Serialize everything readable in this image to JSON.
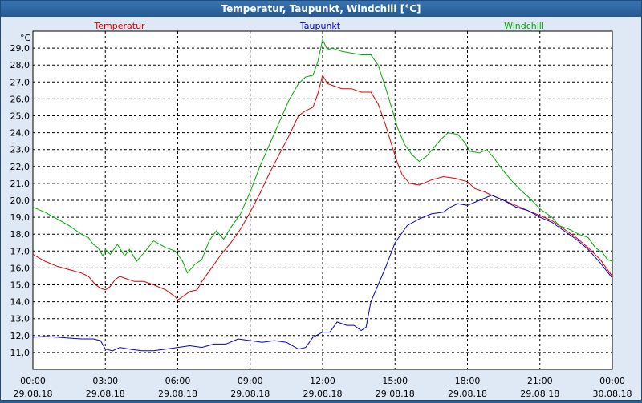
{
  "window": {
    "title": "Temperatur, Taupunkt, Windchill [°C]"
  },
  "chart_data": {
    "type": "line",
    "title": "Temperatur, Taupunkt, Windchill [°C]",
    "ylabel": "°C",
    "xlabel": "",
    "ylim": [
      10.0,
      30.0
    ],
    "xlim": [
      0,
      24
    ],
    "y_ticks": [
      "11,0",
      "12,0",
      "13,0",
      "14,0",
      "15,0",
      "16,0",
      "17,0",
      "18,0",
      "19,0",
      "20,0",
      "21,0",
      "22,0",
      "23,0",
      "24,0",
      "25,0",
      "26,0",
      "27,0",
      "28,0",
      "29,0"
    ],
    "y_tick_values": [
      11,
      12,
      13,
      14,
      15,
      16,
      17,
      18,
      19,
      20,
      21,
      22,
      23,
      24,
      25,
      26,
      27,
      28,
      29
    ],
    "x_ticks": [
      {
        "hour": 0,
        "time": "00:00",
        "date": "29.08.18"
      },
      {
        "hour": 3,
        "time": "03:00",
        "date": "29.08.18"
      },
      {
        "hour": 6,
        "time": "06:00",
        "date": "29.08.18"
      },
      {
        "hour": 9,
        "time": "09:00",
        "date": "29.08.18"
      },
      {
        "hour": 12,
        "time": "12:00",
        "date": "29.08.18"
      },
      {
        "hour": 15,
        "time": "15:00",
        "date": "29.08.18"
      },
      {
        "hour": 18,
        "time": "18:00",
        "date": "29.08.18"
      },
      {
        "hour": 21,
        "time": "21:00",
        "date": "29.08.18"
      },
      {
        "hour": 24,
        "time": "00:00",
        "date": "30.08.18"
      }
    ],
    "grid": true,
    "series": [
      {
        "name": "Temperatur",
        "color": "#dd0000",
        "points": [
          [
            0,
            16.8
          ],
          [
            0.5,
            16.4
          ],
          [
            1,
            16.1
          ],
          [
            1.5,
            15.9
          ],
          [
            2,
            15.7
          ],
          [
            2.3,
            15.5
          ],
          [
            2.6,
            15.0
          ],
          [
            2.8,
            14.8
          ],
          [
            3.0,
            14.7
          ],
          [
            3.2,
            14.9
          ],
          [
            3.4,
            15.3
          ],
          [
            3.6,
            15.5
          ],
          [
            3.8,
            15.4
          ],
          [
            4.2,
            15.2
          ],
          [
            4.6,
            15.2
          ],
          [
            5.0,
            15.0
          ],
          [
            5.5,
            14.7
          ],
          [
            5.9,
            14.3
          ],
          [
            6.0,
            14.1
          ],
          [
            6.2,
            14.3
          ],
          [
            6.5,
            14.6
          ],
          [
            6.8,
            14.7
          ],
          [
            7.0,
            15.2
          ],
          [
            7.4,
            16.0
          ],
          [
            7.8,
            16.8
          ],
          [
            8.2,
            17.5
          ],
          [
            8.6,
            18.3
          ],
          [
            9.0,
            19.3
          ],
          [
            9.4,
            20.4
          ],
          [
            9.8,
            21.6
          ],
          [
            10.2,
            22.7
          ],
          [
            10.6,
            23.8
          ],
          [
            11.0,
            25.0
          ],
          [
            11.3,
            25.3
          ],
          [
            11.6,
            25.5
          ],
          [
            11.8,
            26.3
          ],
          [
            12.0,
            27.4
          ],
          [
            12.2,
            26.9
          ],
          [
            12.4,
            26.8
          ],
          [
            12.8,
            26.6
          ],
          [
            13.2,
            26.6
          ],
          [
            13.6,
            26.4
          ],
          [
            14.0,
            26.4
          ],
          [
            14.3,
            25.7
          ],
          [
            14.6,
            24.5
          ],
          [
            14.9,
            23.1
          ],
          [
            15.1,
            22.2
          ],
          [
            15.3,
            21.5
          ],
          [
            15.6,
            21.0
          ],
          [
            16.0,
            20.9
          ],
          [
            16.5,
            21.2
          ],
          [
            17.0,
            21.4
          ],
          [
            17.5,
            21.3
          ],
          [
            18.0,
            21.1
          ],
          [
            18.3,
            20.7
          ],
          [
            18.7,
            20.5
          ],
          [
            19.0,
            20.3
          ],
          [
            19.5,
            20.0
          ],
          [
            20.0,
            19.7
          ],
          [
            20.5,
            19.4
          ],
          [
            21.0,
            19.1
          ],
          [
            21.5,
            18.8
          ],
          [
            22.0,
            18.3
          ],
          [
            22.5,
            17.8
          ],
          [
            23.0,
            17.2
          ],
          [
            23.5,
            16.5
          ],
          [
            24,
            15.5
          ]
        ]
      },
      {
        "name": "Taupunkt",
        "color": "#0000cc",
        "points": [
          [
            0,
            11.9
          ],
          [
            0.5,
            11.95
          ],
          [
            1,
            11.9
          ],
          [
            1.5,
            11.85
          ],
          [
            2,
            11.8
          ],
          [
            2.5,
            11.8
          ],
          [
            2.8,
            11.7
          ],
          [
            3.0,
            11.2
          ],
          [
            3.3,
            11.1
          ],
          [
            3.6,
            11.3
          ],
          [
            4.0,
            11.2
          ],
          [
            4.5,
            11.1
          ],
          [
            5.0,
            11.1
          ],
          [
            5.5,
            11.2
          ],
          [
            6.0,
            11.3
          ],
          [
            6.5,
            11.4
          ],
          [
            7.0,
            11.3
          ],
          [
            7.5,
            11.5
          ],
          [
            8.0,
            11.5
          ],
          [
            8.5,
            11.8
          ],
          [
            9.0,
            11.7
          ],
          [
            9.5,
            11.6
          ],
          [
            10.0,
            11.7
          ],
          [
            10.5,
            11.6
          ],
          [
            11.0,
            11.2
          ],
          [
            11.3,
            11.3
          ],
          [
            11.6,
            11.9
          ],
          [
            12.0,
            12.2
          ],
          [
            12.3,
            12.2
          ],
          [
            12.6,
            12.8
          ],
          [
            12.8,
            12.7
          ],
          [
            13.0,
            12.6
          ],
          [
            13.3,
            12.6
          ],
          [
            13.6,
            12.3
          ],
          [
            13.8,
            12.5
          ],
          [
            14.0,
            14.0
          ],
          [
            14.3,
            15.0
          ],
          [
            14.6,
            16.0
          ],
          [
            15.0,
            17.5
          ],
          [
            15.5,
            18.5
          ],
          [
            16.0,
            18.9
          ],
          [
            16.5,
            19.2
          ],
          [
            17.0,
            19.3
          ],
          [
            17.3,
            19.6
          ],
          [
            17.6,
            19.8
          ],
          [
            18.0,
            19.7
          ],
          [
            18.5,
            20.0
          ],
          [
            19.0,
            20.3
          ],
          [
            19.5,
            20.0
          ],
          [
            20.0,
            19.6
          ],
          [
            20.5,
            19.4
          ],
          [
            21.0,
            19.0
          ],
          [
            21.5,
            18.7
          ],
          [
            22.0,
            18.2
          ],
          [
            22.5,
            17.7
          ],
          [
            23.0,
            17.1
          ],
          [
            23.5,
            16.3
          ],
          [
            24,
            15.4
          ]
        ]
      },
      {
        "name": "Windchill",
        "color": "#00aa00",
        "points": [
          [
            0,
            19.6
          ],
          [
            0.5,
            19.3
          ],
          [
            1,
            18.9
          ],
          [
            1.5,
            18.5
          ],
          [
            2,
            18.0
          ],
          [
            2.3,
            17.8
          ],
          [
            2.5,
            17.4
          ],
          [
            2.7,
            17.2
          ],
          [
            2.9,
            16.7
          ],
          [
            3.0,
            17.1
          ],
          [
            3.2,
            16.8
          ],
          [
            3.5,
            17.4
          ],
          [
            3.8,
            16.7
          ],
          [
            4.0,
            17.1
          ],
          [
            4.3,
            16.4
          ],
          [
            4.6,
            16.9
          ],
          [
            5.0,
            17.6
          ],
          [
            5.5,
            17.2
          ],
          [
            5.9,
            17.0
          ],
          [
            6.2,
            16.4
          ],
          [
            6.4,
            15.7
          ],
          [
            6.7,
            16.2
          ],
          [
            7.0,
            16.5
          ],
          [
            7.3,
            17.6
          ],
          [
            7.6,
            18.2
          ],
          [
            7.9,
            17.7
          ],
          [
            8.2,
            18.4
          ],
          [
            8.6,
            19.2
          ],
          [
            9.0,
            20.5
          ],
          [
            9.4,
            22.0
          ],
          [
            9.8,
            23.3
          ],
          [
            10.2,
            24.6
          ],
          [
            10.6,
            25.9
          ],
          [
            11.0,
            26.9
          ],
          [
            11.3,
            27.3
          ],
          [
            11.6,
            27.4
          ],
          [
            11.8,
            28.2
          ],
          [
            12.0,
            29.5
          ],
          [
            12.2,
            28.9
          ],
          [
            12.4,
            29.0
          ],
          [
            12.8,
            28.8
          ],
          [
            13.2,
            28.7
          ],
          [
            13.6,
            28.6
          ],
          [
            14.0,
            28.6
          ],
          [
            14.3,
            28.0
          ],
          [
            14.6,
            26.7
          ],
          [
            14.9,
            25.3
          ],
          [
            15.1,
            24.3
          ],
          [
            15.4,
            23.3
          ],
          [
            15.7,
            22.7
          ],
          [
            16.0,
            22.3
          ],
          [
            16.3,
            22.6
          ],
          [
            16.6,
            23.1
          ],
          [
            16.9,
            23.6
          ],
          [
            17.2,
            24.0
          ],
          [
            17.6,
            23.9
          ],
          [
            17.9,
            23.4
          ],
          [
            18.1,
            22.9
          ],
          [
            18.5,
            22.8
          ],
          [
            18.8,
            23.0
          ],
          [
            19.1,
            22.5
          ],
          [
            19.4,
            21.9
          ],
          [
            19.8,
            21.2
          ],
          [
            20.2,
            20.6
          ],
          [
            20.6,
            20.1
          ],
          [
            21.0,
            19.5
          ],
          [
            21.5,
            19.0
          ],
          [
            21.8,
            18.5
          ],
          [
            22.2,
            18.3
          ],
          [
            22.6,
            18.0
          ],
          [
            23.0,
            17.8
          ],
          [
            23.3,
            17.2
          ],
          [
            23.6,
            16.9
          ],
          [
            23.8,
            16.5
          ],
          [
            24,
            16.4
          ]
        ]
      }
    ]
  }
}
